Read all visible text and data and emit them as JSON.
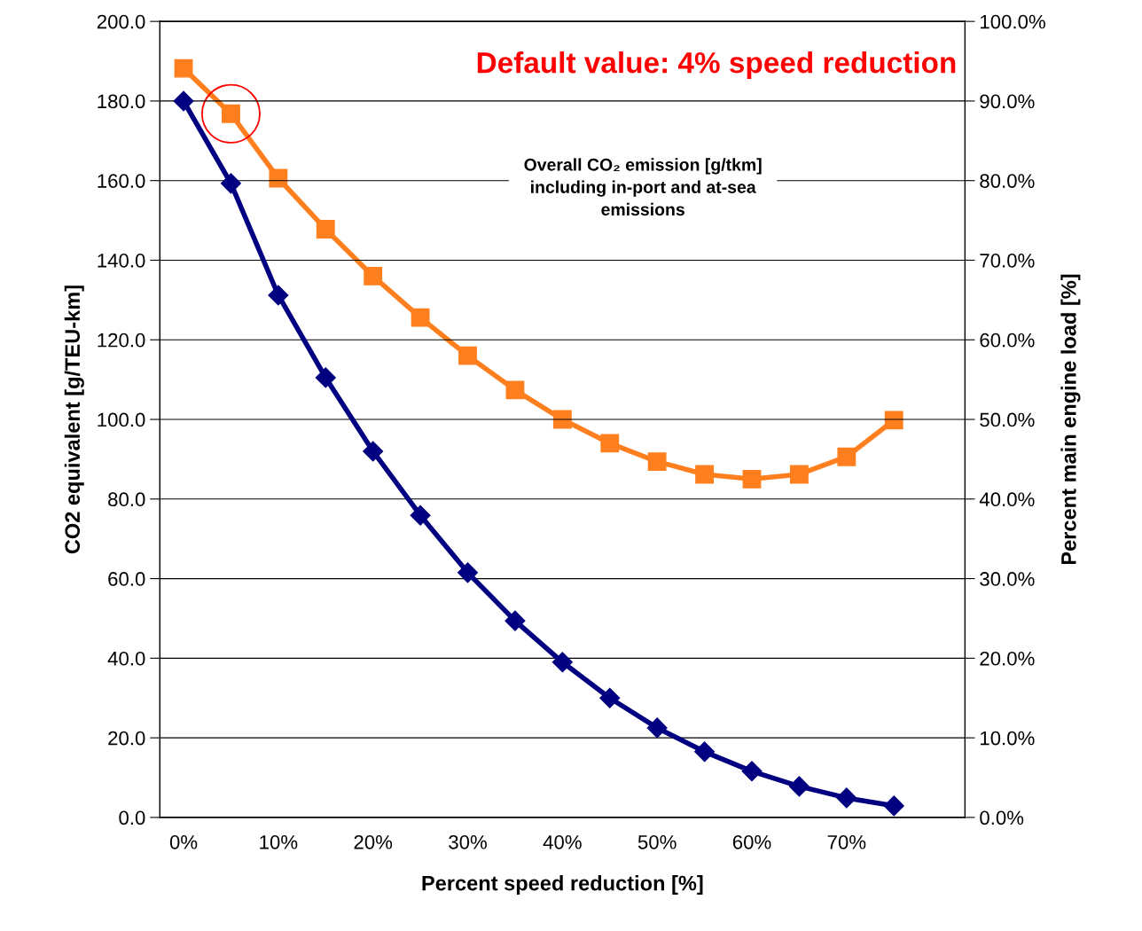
{
  "chart_data": {
    "type": "line",
    "xlabel": "Percent speed reduction [%]",
    "ylabel": "CO2 equivalent [g/TEU-km]",
    "y2label": "Percent main engine load [%]",
    "categories": [
      "0%",
      null,
      "10%",
      null,
      "20%",
      null,
      "30%",
      null,
      "40%",
      null,
      "50%",
      null,
      "60%",
      null,
      "70%",
      null
    ],
    "series": [
      {
        "color": "#000080",
        "marker": "diamond",
        "values": [
          180,
          159.3,
          131.2,
          110.5,
          92,
          75.9,
          61.5,
          49.4,
          39,
          30,
          22.5,
          16.5,
          11.6,
          7.8,
          4.9,
          2.9
        ]
      },
      {
        "color": "#ff7f1e",
        "marker": "square",
        "axis": "y2",
        "values": [
          94.1,
          88.4,
          80.3,
          73.9,
          68.0,
          62.8,
          58.0,
          53.7,
          50.0,
          47.0,
          44.7,
          43.1,
          42.5,
          43.1,
          45.3,
          49.9
        ]
      },
      {
        "type": "scatter",
        "color": "#ff0000",
        "marker": "circle",
        "axis": "y2",
        "values": [
          null,
          88.4,
          null,
          null,
          null,
          null,
          null,
          null,
          null,
          null,
          null,
          null,
          null,
          null,
          null,
          null
        ]
      }
    ],
    "ylim": [
      0,
      200
    ],
    "yticks": [
      {
        "value": 0,
        "label": "0.0"
      },
      {
        "value": 20,
        "label": "20.0"
      },
      {
        "value": 40,
        "label": "40.0"
      },
      {
        "value": 60,
        "label": "60.0"
      },
      {
        "value": 80,
        "label": "80.0"
      },
      {
        "value": 100,
        "label": "100.0"
      },
      {
        "value": 120,
        "label": "120.0"
      },
      {
        "value": 140,
        "label": "140.0"
      },
      {
        "value": 160,
        "label": "160.0"
      },
      {
        "value": 180,
        "label": "180.0"
      },
      {
        "value": 200,
        "label": "200.0"
      }
    ],
    "y2lim": [
      0,
      100
    ],
    "y2ticks": [
      {
        "value": 0,
        "label": "0.0%"
      },
      {
        "value": 10,
        "label": "10.0%"
      },
      {
        "value": 20,
        "label": "20.0%"
      },
      {
        "value": 30,
        "label": "30.0%"
      },
      {
        "value": 40,
        "label": "40.0%"
      },
      {
        "value": 50,
        "label": "50.0%"
      },
      {
        "value": 60,
        "label": "60.0%"
      },
      {
        "value": 70,
        "label": "70.0%"
      },
      {
        "value": 80,
        "label": "80.0%"
      },
      {
        "value": 90,
        "label": "90.0%"
      },
      {
        "value": 100,
        "label": "100.0%"
      }
    ],
    "grid": "y",
    "annotations": [
      "Default value: 4% speed reduction",
      "Overall CO₂ emission [g/tkm]\nincluding in-port and at-sea\nemissions"
    ]
  }
}
